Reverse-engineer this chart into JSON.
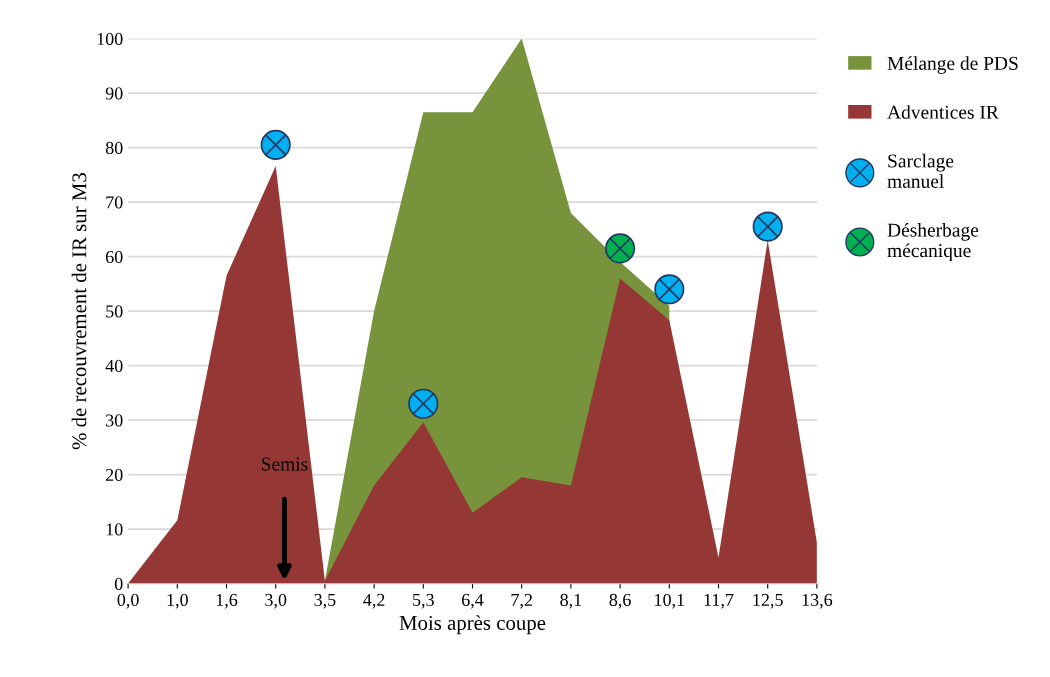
{
  "chart_data": {
    "type": "area",
    "xlabel": "Mois après coupe",
    "ylabel": "% de recouvrement de IR sur M3",
    "categories": [
      "0,0",
      "1,0",
      "1,6",
      "3,0",
      "3,5",
      "4,2",
      "5,3",
      "6,4",
      "7,2",
      "8,1",
      "8,6",
      "10,1",
      "11,7",
      "12,5",
      "13,6"
    ],
    "series": [
      {
        "name": "Mélange de PDS",
        "color": "#77933c",
        "values": [
          null,
          null,
          null,
          null,
          0.5,
          50,
          86.5,
          86.5,
          100,
          68,
          59,
          51,
          null,
          null,
          null
        ]
      },
      {
        "name": "Adventices IR",
        "color": "#953735",
        "values": [
          0,
          11.6,
          56.5,
          76.6,
          0.5,
          18,
          29.6,
          13,
          19.5,
          18,
          56,
          48.3,
          4.8,
          63,
          7.5
        ]
      },
      {
        "name": "Sarclage manuel",
        "type": "scatter",
        "marker": "circle",
        "color": "#00b0f0",
        "x": [
          "3,0",
          "5,3",
          "10,1",
          "12,5"
        ],
        "values": [
          80.5,
          33,
          54,
          65.5
        ]
      },
      {
        "name": "Désherbage mécanique",
        "type": "scatter",
        "marker": "circle",
        "color": "#00b050",
        "x": [
          "8,6"
        ],
        "values": [
          61.5
        ]
      }
    ],
    "annotations": [
      "Semis"
    ],
    "ylim": [
      0,
      100
    ],
    "yticks": [
      0,
      10,
      20,
      30,
      40,
      50,
      60,
      70,
      80,
      90,
      100
    ],
    "grid": "y",
    "legend": "right"
  }
}
